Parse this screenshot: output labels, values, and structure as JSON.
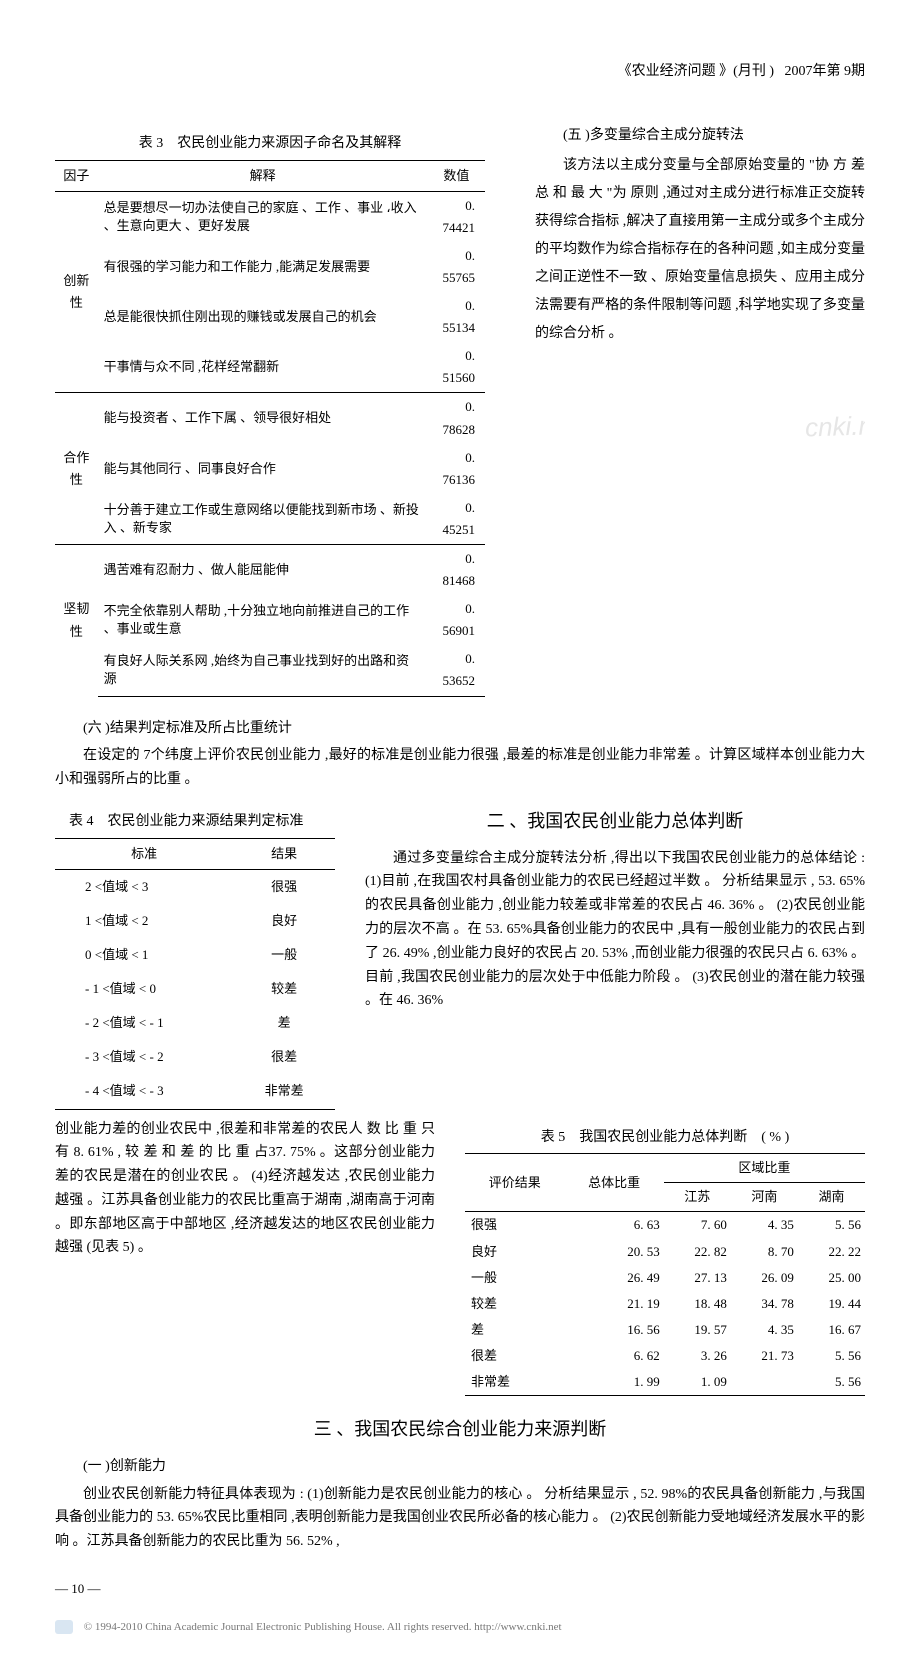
{
  "header": {
    "journal": "《农业经济问题 》(月刊 )",
    "issue": "2007年第 9期"
  },
  "table3": {
    "caption": "表 3　农民创业能力来源因子命名及其解释",
    "columns": [
      "因子",
      "解释",
      "数值"
    ],
    "groups": [
      {
        "factor": "创新性",
        "rows": [
          {
            "expl": "总是要想尽一切办法使自己的家庭 、工作 、事业 ،收入 、生意向更大 、更好发展",
            "val": "0. 74421"
          },
          {
            "expl": "有很强的学习能力和工作能力 ,能满足发展需要",
            "val": "0. 55765"
          },
          {
            "expl": "总是能很快抓住刚出现的赚钱或发展自己的机会",
            "val": "0. 55134"
          },
          {
            "expl": "干事情与众不同 ,花样经常翻新",
            "val": "0. 51560"
          }
        ]
      },
      {
        "factor": "合作性",
        "rows": [
          {
            "expl": "能与投资者 、工作下属 、领导很好相处",
            "val": "0. 78628"
          },
          {
            "expl": "能与其他同行 、同事良好合作",
            "val": "0. 76136"
          },
          {
            "expl": "十分善于建立工作或生意网络以便能找到新市场 、新投入 、新专家",
            "val": "0. 45251"
          }
        ]
      },
      {
        "factor": "坚韧性",
        "rows": [
          {
            "expl": "遇苦难有忍耐力 、做人能屈能伸",
            "val": "0. 81468"
          },
          {
            "expl": "不完全依靠别人帮助 ,十分独立地向前推进自己的工作 、事业或生意",
            "val": "0. 56901"
          },
          {
            "expl": "有良好人际关系网 ,始终为自己事业找到好的出路和资源",
            "val": "0. 53652"
          }
        ]
      }
    ]
  },
  "section5": {
    "head": "(五 )多变量综合主成分旋转法",
    "para": "该方法以主成分变量与全部原始变量的 \"协 方 差 总 和 最 大 \"为 原则 ,通过对主成分进行标准正交旋转获得综合指标 ,解决了直接用第一主成分或多个主成分的平均数作为综合指标存在的各种问题 ,如主成分变量之间正逆性不一致 、原始变量信息损失 、应用主成分法需要有严格的条件限制等问题 ,科学地实现了多变量的综合分析 。"
  },
  "section6": {
    "head": "(六 )结果判定标准及所占比重统计",
    "para": "在设定的 7个纬度上评价农民创业能力 ,最好的标准是创业能力很强 ,最差的标准是创业能力非常差 。计算区域样本创业能力大小和强弱所占的比重 。"
  },
  "table4": {
    "caption": "表 4　农民创业能力来源结果判定标准",
    "columns": [
      "标准",
      "结果"
    ],
    "rows": [
      [
        "2 <值域 < 3",
        "很强"
      ],
      [
        "1 <值域 < 2",
        "良好"
      ],
      [
        "0 <值域 < 1",
        "一般"
      ],
      [
        "- 1 <值域 < 0",
        "较差"
      ],
      [
        "- 2 <值域 < - 1",
        "差"
      ],
      [
        "- 3 <值域 < - 2",
        "很差"
      ],
      [
        "- 4 <值域 < - 3",
        "非常差"
      ]
    ]
  },
  "sect2": {
    "title": "二 、我国农民创业能力总体判断",
    "para": "通过多变量综合主成分旋转法分析 ,得出以下我国农民创业能力的总体结论 : (1)目前 ,在我国农村具备创业能力的农民已经超过半数 。 分析结果显示 , 53. 65%的农民具备创业能力 ,创业能力较差或非常差的农民占 46. 36% 。 (2)农民创业能力的层次不高 。在 53. 65%具备创业能力的农民中 ,具有一般创业能力的农民占到了 26. 49% ,创业能力良好的农民占 20. 53% ,而创业能力很强的农民只占 6. 63% 。目前 ,我国农民创业能力的层次处于中低能力阶段 。 (3)农民创业的潜在能力较强 。在 46. 36%"
  },
  "cont_para": "创业能力差的创业农民中 ,很差和非常差的农民人 数 比 重 只 有 8. 61% , 较 差 和 差 的 比 重 占37. 75% 。这部分创业能力差的农民是潜在的创业农民 。 (4)经济越发达 ,农民创业能力越强 。江苏具备创业能力的农民比重高于湖南 ,湖南高于河南 。即东部地区高于中部地区 ,经济越发达的地区农民创业能力越强 (见表 5) 。",
  "table5": {
    "caption": "表 5　我国农民创业能力总体判断　( % )",
    "head1": "评价结果",
    "head2": "总体比重",
    "head3": "区域比重",
    "sub": [
      "江苏",
      "河南",
      "湖南"
    ],
    "rows": [
      [
        "很强",
        "6. 63",
        "7. 60",
        "4. 35",
        "5. 56"
      ],
      [
        "良好",
        "20. 53",
        "22. 82",
        "8. 70",
        "22. 22"
      ],
      [
        "一般",
        "26. 49",
        "27. 13",
        "26. 09",
        "25. 00"
      ],
      [
        "较差",
        "21. 19",
        "18. 48",
        "34. 78",
        "19. 44"
      ],
      [
        "差",
        "16. 56",
        "19. 57",
        "4. 35",
        "16. 67"
      ],
      [
        "很差",
        "6. 62",
        "3. 26",
        "21. 73",
        "5. 56"
      ],
      [
        "非常差",
        "1. 99",
        "1. 09",
        "",
        "5. 56"
      ]
    ]
  },
  "sect3": {
    "title": "三 、我国农民综合创业能力来源判断",
    "sub": "(一 )创新能力",
    "para": "创业农民创新能力特征具体表现为 : (1)创新能力是农民创业能力的核心 。 分析结果显示 , 52. 98%的农民具备创新能力 ,与我国具备创业能力的 53. 65%农民比重相同 ,表明创新能力是我国创业农民所必备的核心能力 。 (2)农民创新能力受地域经济发展水平的影响 。江苏具备创新能力的农民比重为 56. 52% ,"
  },
  "pagenum": "— 10 —",
  "footer": "© 1994-2010 China Academic Journal Electronic Publishing House. All rights reserved.    http://www.cnki.net",
  "watermark": "cnki.net"
}
